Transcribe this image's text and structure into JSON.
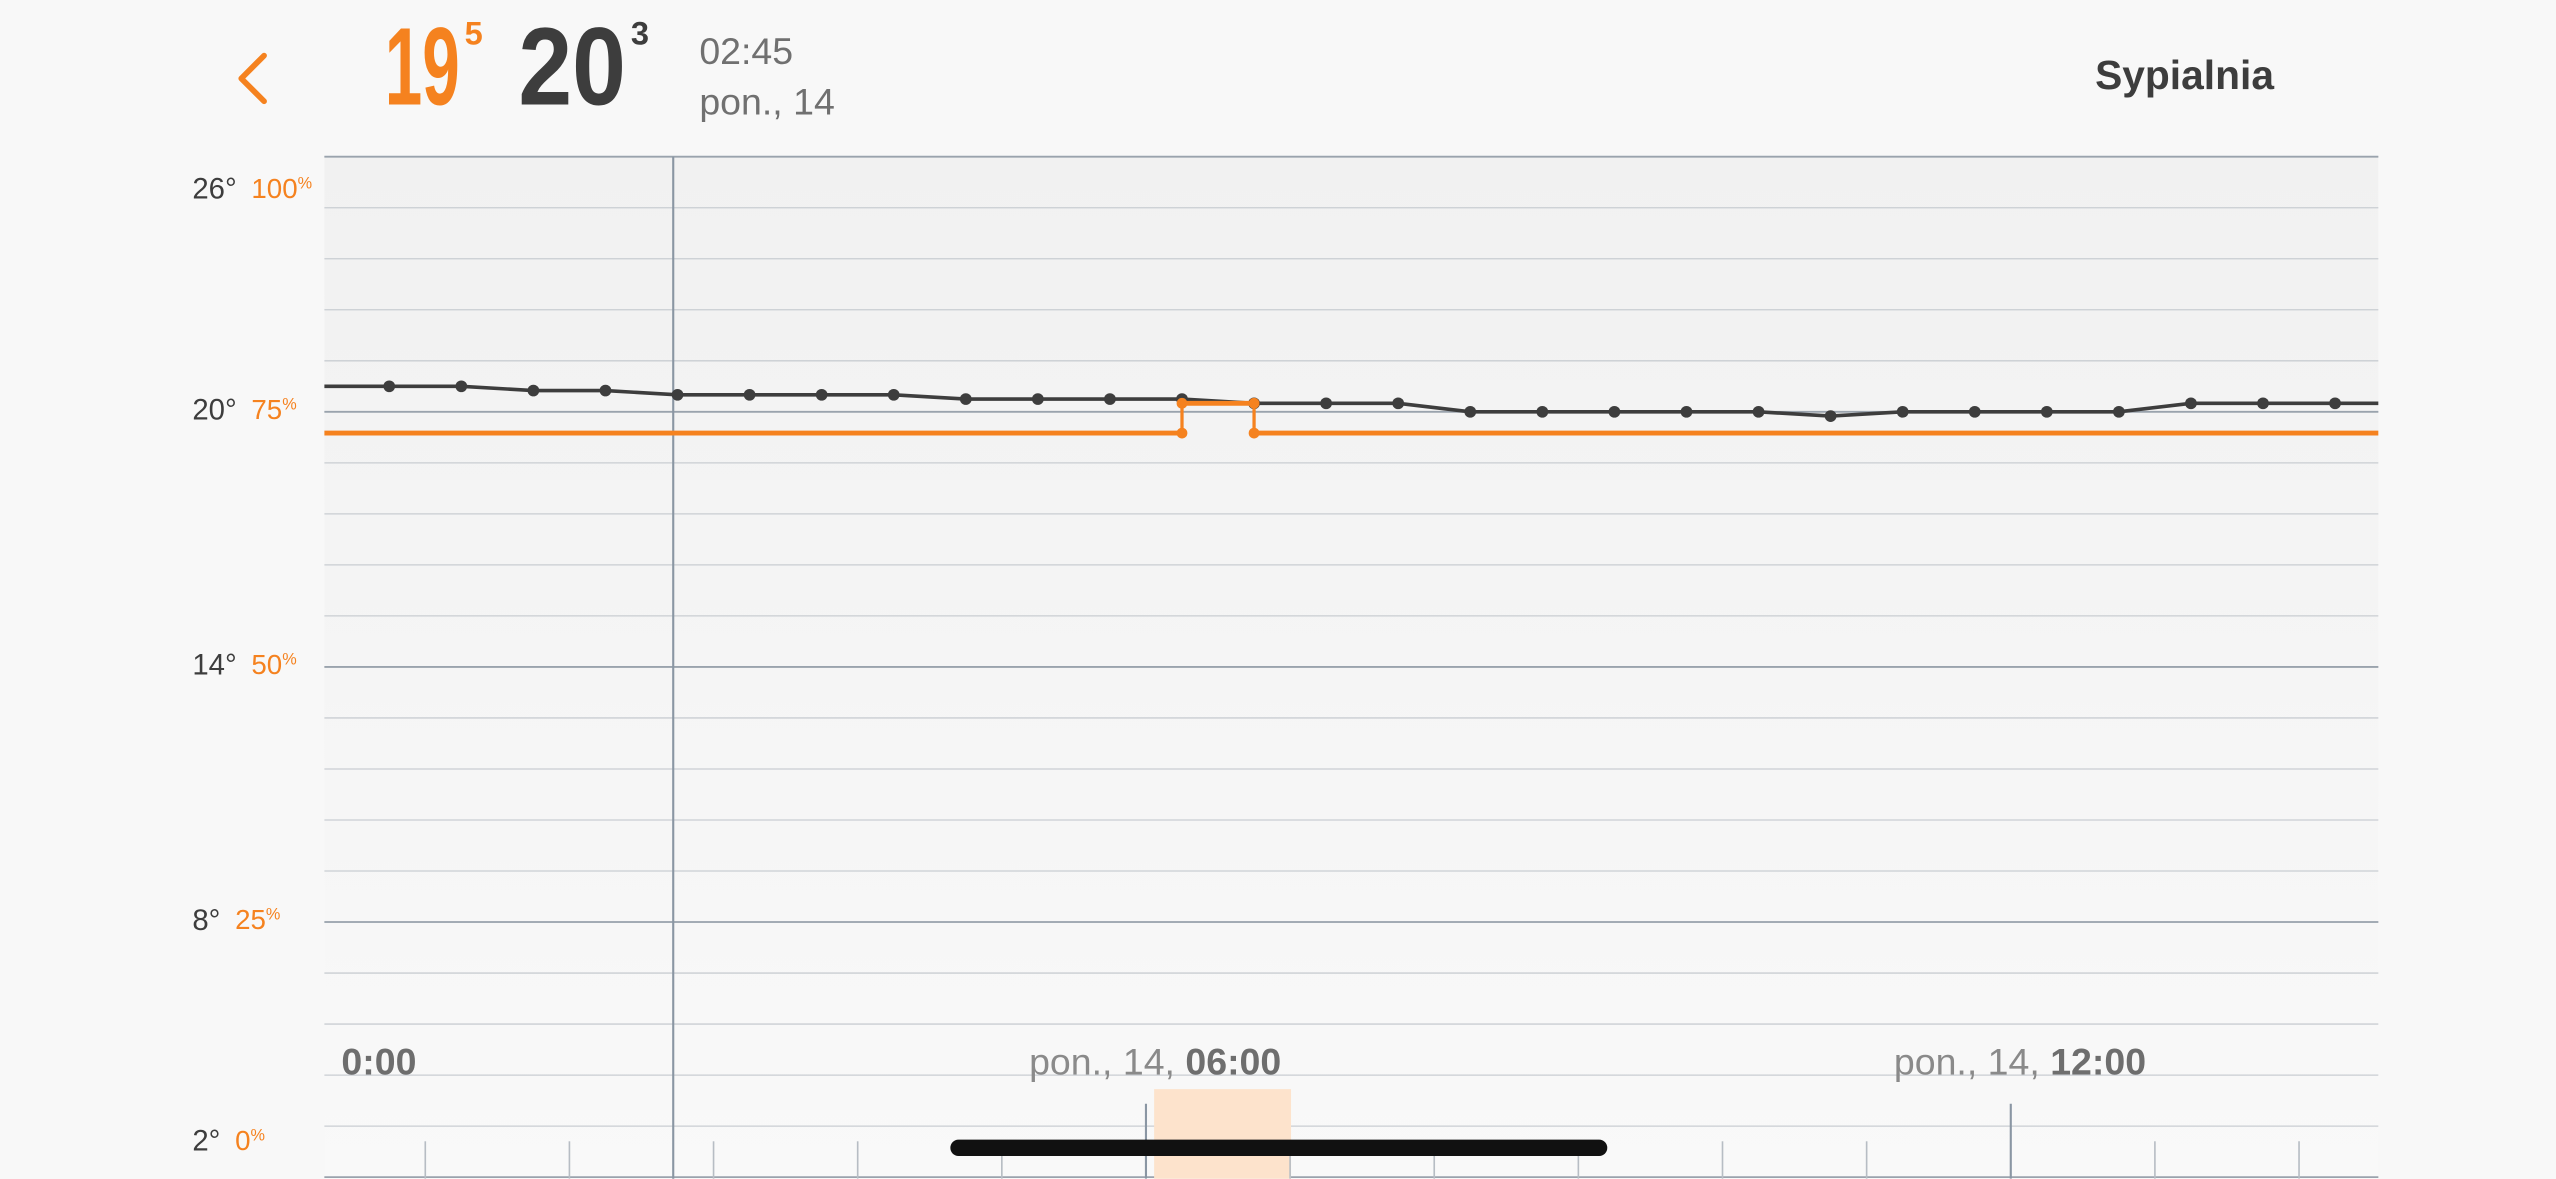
{
  "header": {
    "setpoint_whole": "19",
    "setpoint_frac": "5",
    "current_whole": "20",
    "current_frac": "3",
    "time": "02:45",
    "date": "pon., 14",
    "room": "Sypialnia"
  },
  "chart_data": {
    "type": "line",
    "xlim": [
      "00:18",
      "14:33"
    ],
    "xticks": [
      {
        "value": "00:00",
        "label": "00:00"
      },
      {
        "value": "06:00",
        "label": "pon., 14, 06:00"
      },
      {
        "value": "12:00",
        "label": "pon., 14, 12:00"
      }
    ],
    "xminorticks": [
      "01:00",
      "02:00",
      "03:00",
      "04:00",
      "05:00",
      "07:00",
      "08:00",
      "09:00",
      "10:00",
      "11:00",
      "13:00",
      "14:00"
    ],
    "ylim": [
      2,
      26
    ],
    "yticks": [
      {
        "value": 26,
        "label": "26°"
      },
      {
        "value": 20,
        "label": "20°"
      },
      {
        "value": 14,
        "label": "14°"
      },
      {
        "value": 8,
        "label": "8°"
      },
      {
        "value": 2,
        "label": "2°"
      }
    ],
    "y2lim": [
      0,
      100
    ],
    "y2ticks": [
      {
        "value": 100,
        "label": "100%"
      },
      {
        "value": 75,
        "label": "75%"
      },
      {
        "value": 50,
        "label": "50%"
      },
      {
        "value": 25,
        "label": "25%"
      },
      {
        "value": 0,
        "label": "0%"
      }
    ],
    "yminorstep": 1.2,
    "grid": true,
    "series": [
      {
        "color": "#3d3d3d",
        "markers": true,
        "x": [
          "00:15",
          "00:45",
          "01:15",
          "01:45",
          "02:15",
          "02:45",
          "03:15",
          "03:45",
          "04:15",
          "04:45",
          "05:15",
          "05:45",
          "06:15",
          "06:45",
          "07:15",
          "07:45",
          "08:15",
          "08:45",
          "09:15",
          "09:45",
          "10:15",
          "10:45",
          "11:15",
          "11:45",
          "12:15",
          "12:45",
          "13:15",
          "13:45",
          "14:15",
          "14:45"
        ],
        "values": [
          20.6,
          20.6,
          20.6,
          20.5,
          20.5,
          20.4,
          20.4,
          20.4,
          20.4,
          20.3,
          20.3,
          20.3,
          20.3,
          20.2,
          20.2,
          20.2,
          20.0,
          20.0,
          20.0,
          20.0,
          20.0,
          19.9,
          20.0,
          20.0,
          20.0,
          20.0,
          20.2,
          20.2,
          20.2,
          20.2
        ]
      },
      {
        "color": "#f5821f",
        "step": "post",
        "x": [
          "00:15",
          "06:15",
          "06:45",
          "14:45"
        ],
        "values": [
          19.5,
          20.2,
          19.5,
          19.5
        ]
      }
    ]
  }
}
